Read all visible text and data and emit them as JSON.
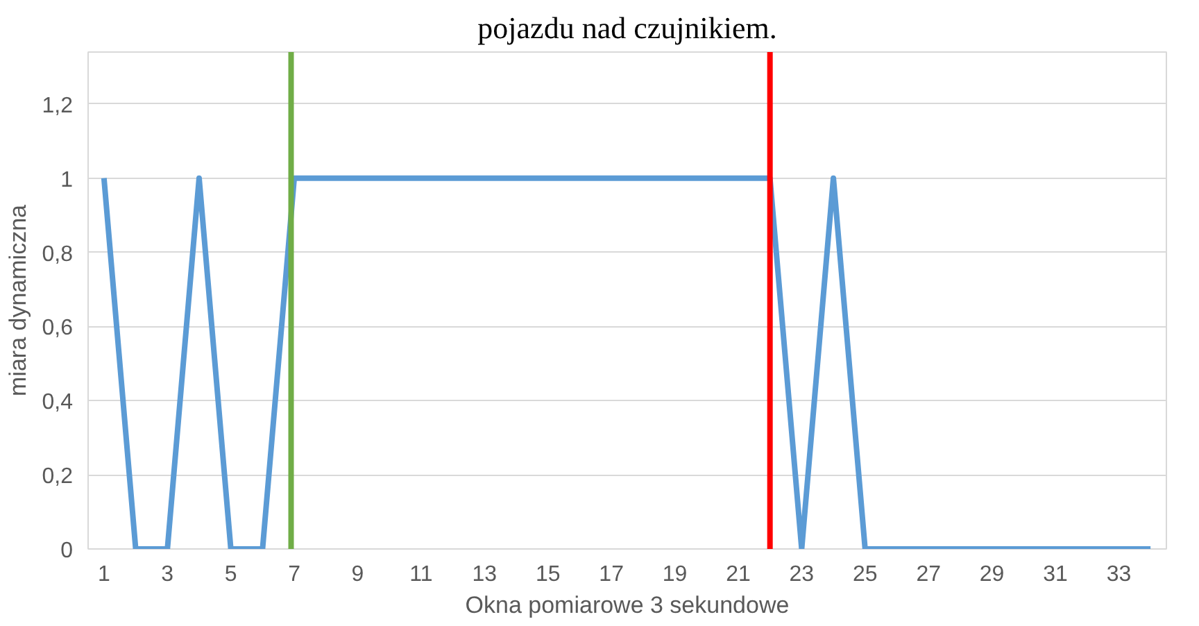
{
  "chart_data": {
    "type": "line",
    "annotations": [
      "pojazdu nad czujnikiem."
    ],
    "xlabel": "Okna pomiarowe 3 sekundowe",
    "ylabel": "miara dynamiczna",
    "x": [
      1,
      2,
      3,
      4,
      5,
      6,
      7,
      8,
      9,
      10,
      11,
      12,
      13,
      14,
      15,
      16,
      17,
      18,
      19,
      20,
      21,
      22,
      23,
      24,
      25,
      26,
      27,
      28,
      29,
      30,
      31,
      32,
      33,
      34
    ],
    "series": [
      {
        "color": "#5b9bd5",
        "values": [
          1,
          0,
          0,
          1,
          0,
          0,
          1,
          1,
          1,
          1,
          1,
          1,
          1,
          1,
          1,
          1,
          1,
          1,
          1,
          1,
          1,
          1,
          0,
          1,
          0,
          0,
          0,
          0,
          0,
          0,
          0,
          0,
          0,
          0
        ]
      }
    ],
    "xlim": [
      0.5,
      34.5
    ],
    "xticks": [
      1,
      3,
      5,
      7,
      9,
      11,
      13,
      15,
      17,
      19,
      21,
      23,
      25,
      27,
      29,
      31,
      33
    ],
    "ylim": [
      0,
      1.34
    ],
    "yticks": [
      0,
      {
        "value": 0.2,
        "label": "0,2"
      },
      {
        "value": 0.4,
        "label": "0,4"
      },
      {
        "value": 0.6,
        "label": "0,6"
      },
      {
        "value": 0.8,
        "label": "0,8"
      },
      1,
      {
        "value": 1.2,
        "label": "1,2"
      }
    ],
    "grid": "y",
    "marker": "none",
    "line_style": "solid",
    "ref_lines": [
      {
        "axis": "x",
        "value": 6.9,
        "color": "#70ad47"
      },
      {
        "axis": "x",
        "value": 22,
        "color": "#ff0000"
      }
    ]
  }
}
